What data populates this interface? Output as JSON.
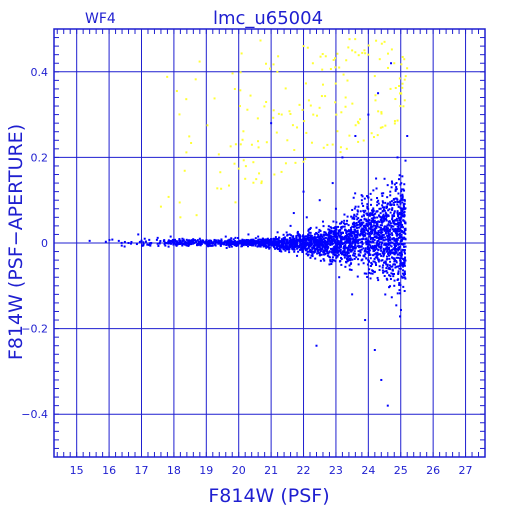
{
  "chart_data": {
    "type": "scatter",
    "title": "lmc_u65004",
    "chip_label": "WF4",
    "xlabel": "F814W (PSF)",
    "ylabel": "F814W (PSF−APERTURE)",
    "xlim": [
      14.3,
      27.6
    ],
    "ylim": [
      -0.5,
      0.5
    ],
    "x_ticks": [
      15,
      16,
      17,
      18,
      19,
      20,
      21,
      22,
      23,
      24,
      25,
      26,
      27
    ],
    "x_tick_labels": [
      "15",
      "16",
      "17",
      "18",
      "19",
      "20",
      "21",
      "22",
      "23",
      "24",
      "25",
      "26",
      "27"
    ],
    "y_ticks": [
      0.4,
      0.2,
      0,
      -0.2,
      -0.4
    ],
    "y_tick_labels": [
      "0.4",
      "0.2",
      "0",
      "−0.2",
      "−0.4"
    ],
    "grid": true,
    "colors": {
      "primary": "#0000ff",
      "secondary": "#ffff33",
      "axis": "#1f1fd0"
    },
    "series": [
      {
        "color": "#0000ff",
        "points": [
          [
            15.4,
            0.005
          ],
          [
            15.9,
            0.003
          ],
          [
            16.1,
            0.008
          ],
          [
            16.6,
            0.0
          ],
          [
            16.9,
            0.02
          ],
          [
            17.1,
            0.01
          ],
          [
            17.3,
            0.0
          ],
          [
            17.5,
            0.012
          ],
          [
            17.7,
            0.005
          ],
          [
            17.9,
            0.015
          ],
          [
            18.1,
            0.0
          ],
          [
            18.3,
            0.008
          ],
          [
            18.5,
            0.004
          ],
          [
            18.8,
            0.01
          ],
          [
            19.0,
            0.0
          ],
          [
            19.3,
            0.006
          ],
          [
            19.6,
            0.015
          ],
          [
            19.9,
            0.012
          ],
          [
            20.1,
            0.0
          ],
          [
            20.3,
            0.02
          ],
          [
            20.6,
            0.015
          ],
          [
            20.9,
            0.01
          ],
          [
            21.0,
            0.28
          ],
          [
            21.2,
            0.025
          ],
          [
            21.4,
            -0.01
          ],
          [
            21.6,
            0.04
          ],
          [
            21.7,
            0.07
          ],
          [
            21.8,
            -0.03
          ],
          [
            22.0,
            0.12
          ],
          [
            22.1,
            0.06
          ],
          [
            22.3,
            -0.02
          ],
          [
            22.4,
            -0.24
          ],
          [
            22.5,
            0.1
          ],
          [
            22.6,
            0.05
          ],
          [
            22.8,
            -0.05
          ],
          [
            22.9,
            0.14
          ],
          [
            23.0,
            0.08
          ],
          [
            23.1,
            -0.08
          ],
          [
            23.2,
            0.2
          ],
          [
            23.4,
            0.03
          ],
          [
            23.5,
            -0.12
          ],
          [
            23.6,
            0.25
          ],
          [
            23.7,
            -0.05
          ],
          [
            23.8,
            0.1
          ],
          [
            23.9,
            -0.18
          ],
          [
            24.0,
            0.3
          ],
          [
            24.1,
            0.05
          ],
          [
            24.2,
            -0.25
          ],
          [
            24.3,
            0.35
          ],
          [
            24.4,
            -0.32
          ],
          [
            24.5,
            0.15
          ],
          [
            24.6,
            -0.38
          ],
          [
            24.7,
            0.42
          ],
          [
            24.8,
            -0.1
          ],
          [
            24.9,
            0.2
          ],
          [
            25.0,
            0.05
          ],
          [
            25.1,
            -0.05
          ],
          [
            25.2,
            0.25
          ]
        ]
      },
      {
        "color": "#ffff33",
        "points": [
          [
            17.6,
            0.085
          ],
          [
            18.2,
            0.06
          ],
          [
            18.7,
            0.065
          ],
          [
            19.9,
            0.095
          ],
          [
            20.2,
            0.15
          ],
          [
            20.7,
            0.14
          ],
          [
            21.1,
            0.16
          ],
          [
            21.5,
            0.24
          ],
          [
            21.8,
            0.27
          ],
          [
            22.0,
            0.19
          ],
          [
            22.3,
            0.3
          ],
          [
            22.6,
            0.37
          ],
          [
            22.9,
            0.23
          ],
          [
            23.1,
            0.41
          ],
          [
            23.3,
            0.34
          ],
          [
            23.5,
            0.45
          ],
          [
            23.7,
            0.28
          ],
          [
            24.0,
            0.44
          ],
          [
            24.2,
            0.39
          ],
          [
            24.5,
            0.47
          ],
          [
            24.8,
            0.42
          ],
          [
            25.0,
            0.35
          ]
        ]
      }
    ]
  }
}
